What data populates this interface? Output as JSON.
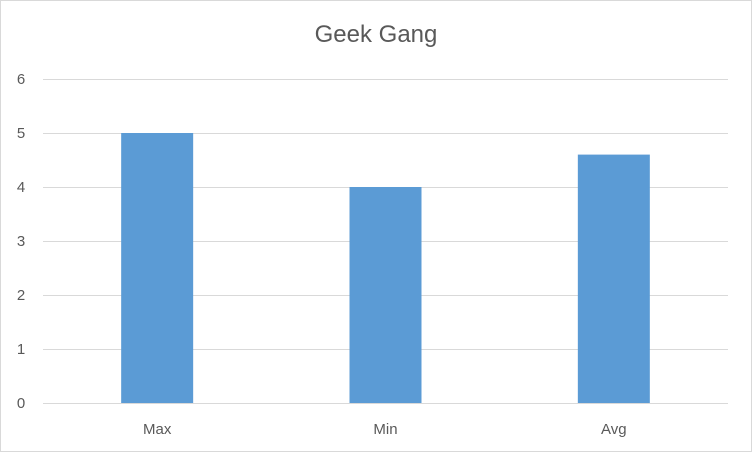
{
  "chart_data": {
    "type": "bar",
    "title": "Geek Gang",
    "categories": [
      "Max",
      "Min",
      "Avg"
    ],
    "values": [
      5,
      4,
      4.6
    ],
    "ylim": [
      0,
      6
    ],
    "yticks": [
      0,
      1,
      2,
      3,
      4,
      5,
      6
    ],
    "xlabel": "",
    "ylabel": "",
    "grid": true,
    "legend": "none",
    "bar_color": "#5b9bd5",
    "grid_color": "#d9d9d9",
    "text_color": "#595959"
  }
}
